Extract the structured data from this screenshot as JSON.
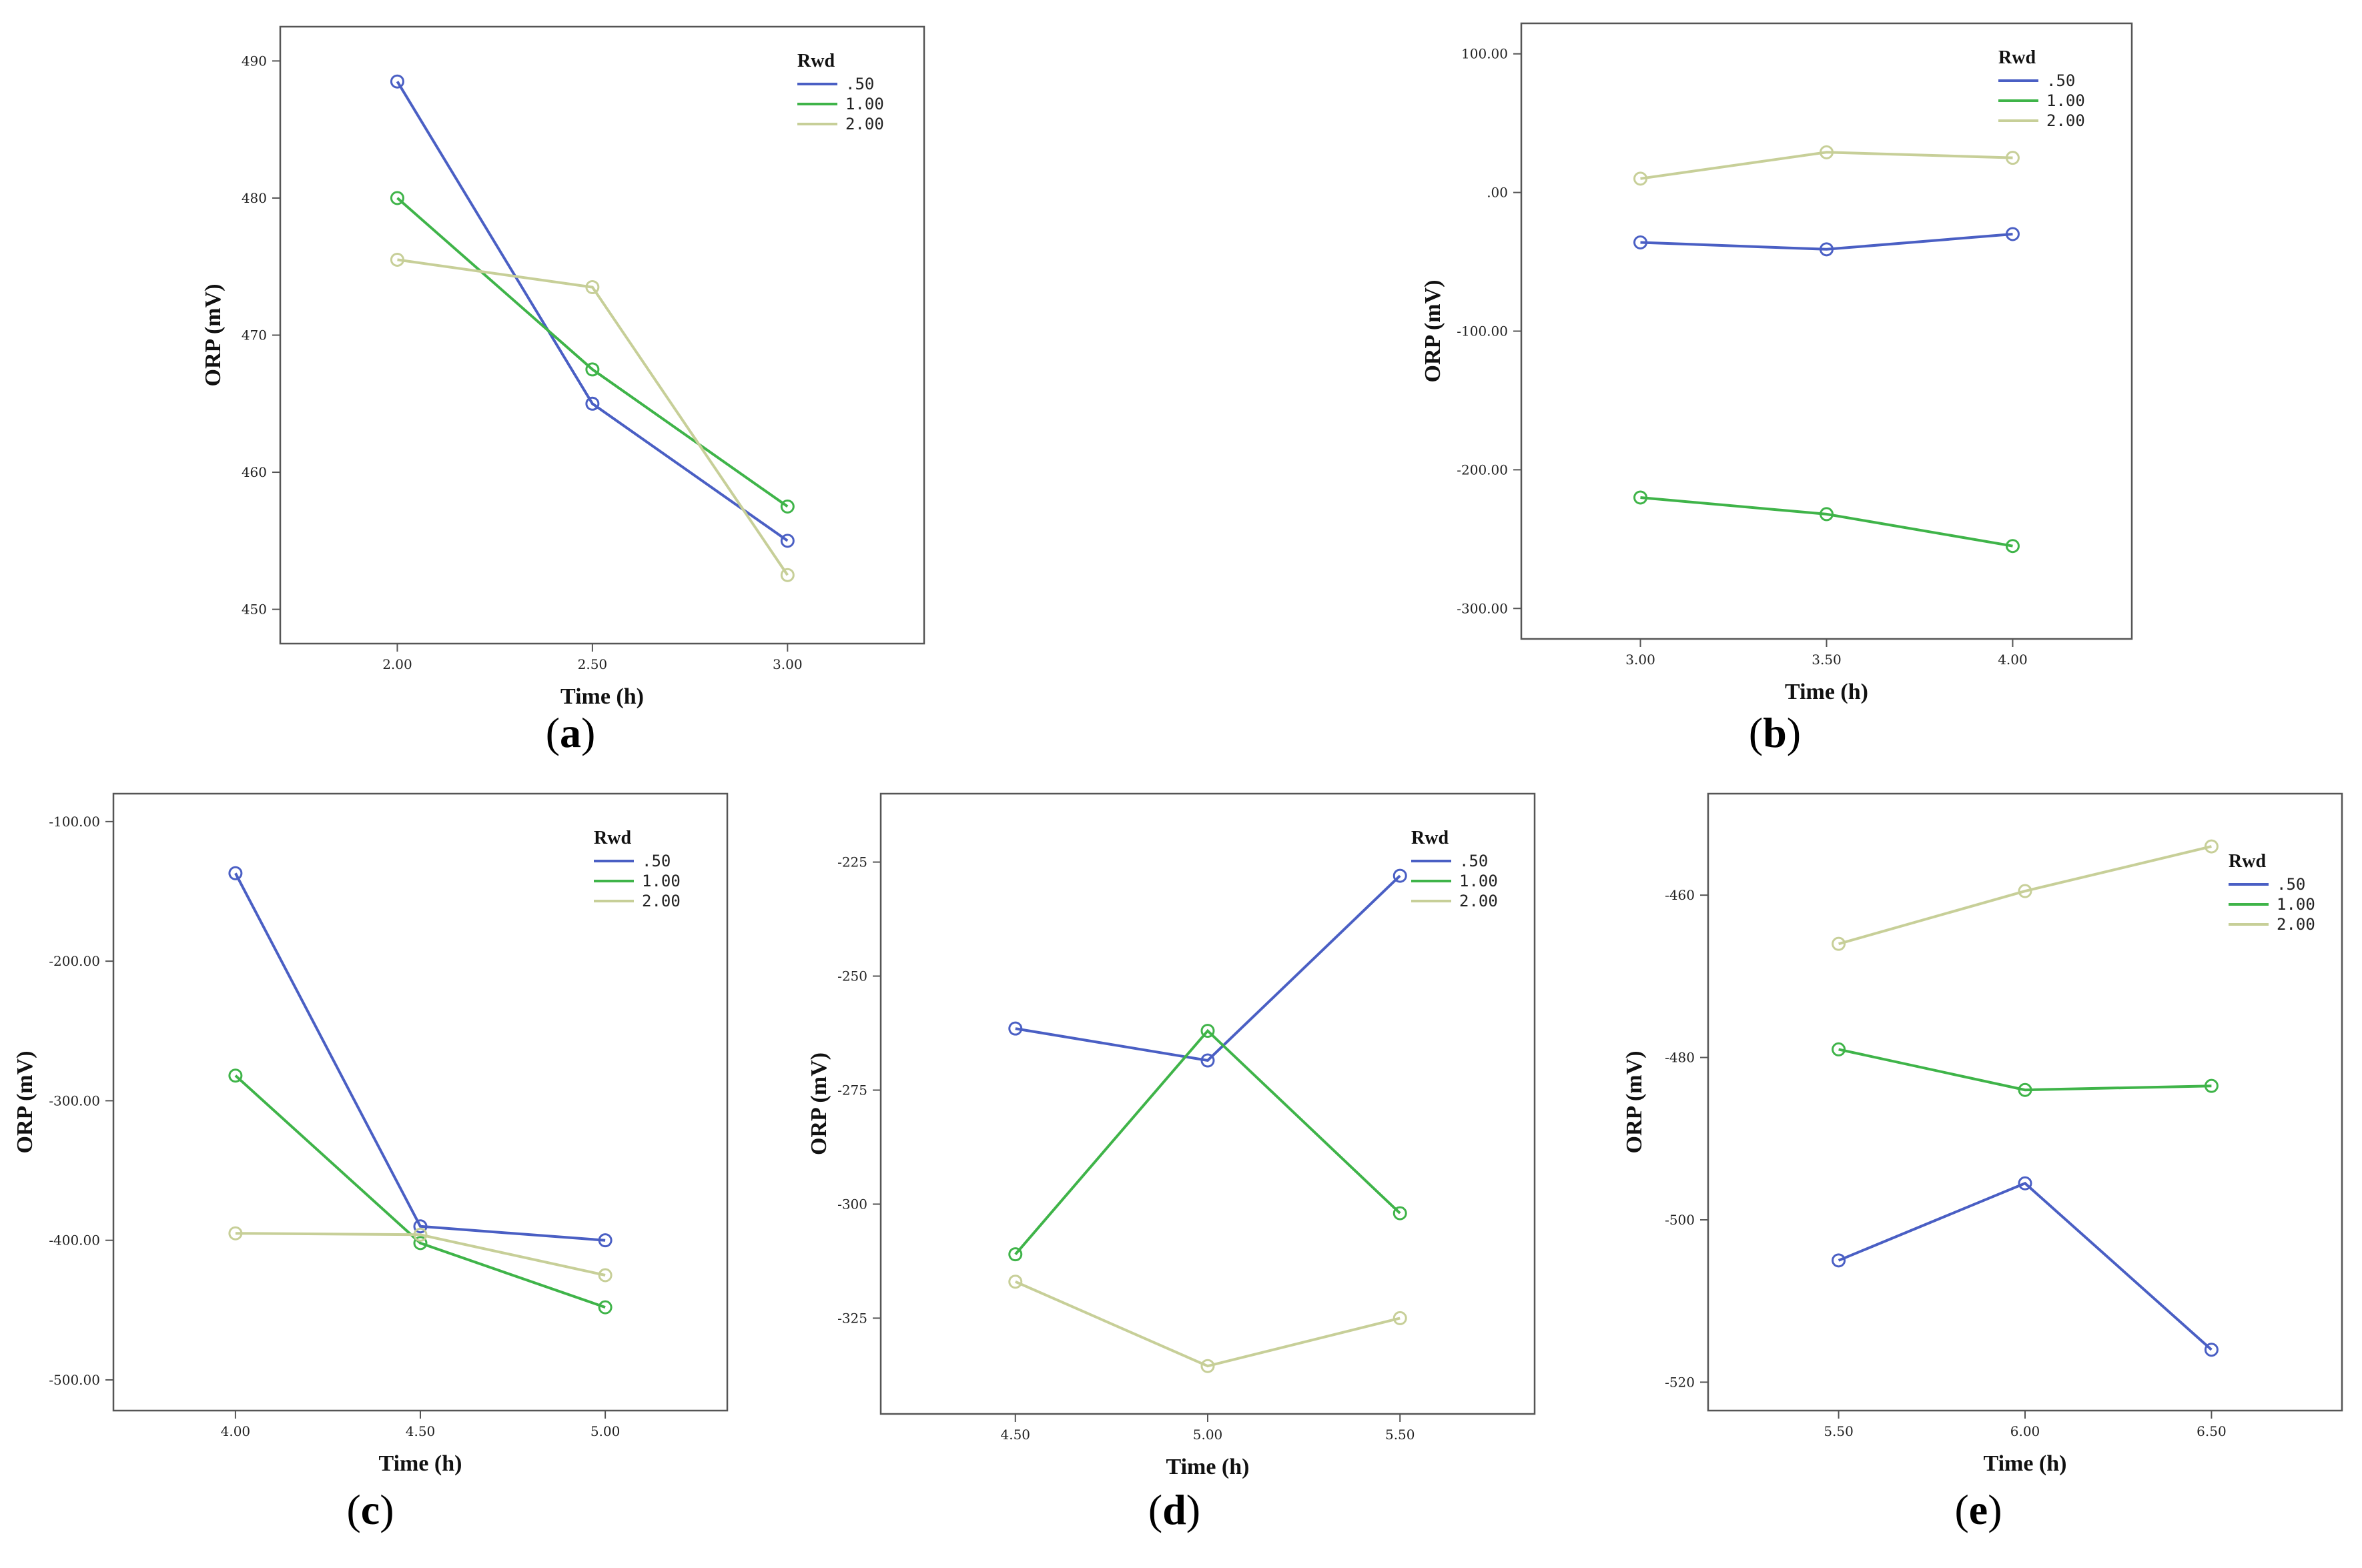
{
  "figure": {
    "colors": {
      "s050": "#4a5fc4",
      "s100": "#3fb449",
      "s200": "#c7cf98"
    },
    "legend": {
      "title": "Rwd",
      "entries": [
        ".50",
        "1.00",
        "2.00"
      ]
    }
  },
  "chart_data": [
    {
      "id": "a",
      "panel_label": "a",
      "type": "line",
      "xlabel": "Time (h)",
      "ylabel": "ORP (mV)",
      "x": [
        2.0,
        2.5,
        3.0
      ],
      "xlim": [
        1.7,
        3.35
      ],
      "xticks": [
        "2.00",
        "2.50",
        "3.00"
      ],
      "ylim": [
        447.5,
        492.5
      ],
      "yticks": [
        450,
        460,
        470,
        480,
        490
      ],
      "ytick_labels": [
        "450",
        "460",
        "470",
        "480",
        "490"
      ],
      "legend_position": "top-right",
      "series": [
        {
          "name": ".50",
          "values": [
            488.5,
            465.0,
            455.0
          ]
        },
        {
          "name": "1.00",
          "values": [
            480.0,
            467.5,
            457.5
          ]
        },
        {
          "name": "2.00",
          "values": [
            475.5,
            473.5,
            452.5
          ]
        }
      ]
    },
    {
      "id": "b",
      "panel_label": "b",
      "type": "line",
      "xlabel": "Time (h)",
      "ylabel": "ORP (mV)",
      "x": [
        3.0,
        3.5,
        4.0
      ],
      "xlim": [
        2.68,
        4.32
      ],
      "xticks": [
        "3.00",
        "3.50",
        "4.00"
      ],
      "ylim": [
        -322,
        122
      ],
      "yticks": [
        -300,
        -200,
        -100,
        0,
        100
      ],
      "ytick_labels": [
        "-300.00",
        "-200.00",
        "-100.00",
        ".00",
        "100.00"
      ],
      "legend_position": "top-right",
      "series": [
        {
          "name": ".50",
          "values": [
            -36,
            -41,
            -30
          ]
        },
        {
          "name": "1.00",
          "values": [
            -220,
            -232,
            -255
          ]
        },
        {
          "name": "2.00",
          "values": [
            10,
            29,
            25
          ]
        }
      ]
    },
    {
      "id": "c",
      "panel_label": "c",
      "type": "line",
      "xlabel": "Time (h)",
      "ylabel": "ORP (mV)",
      "x": [
        4.0,
        4.5,
        5.0
      ],
      "xlim": [
        3.67,
        5.33
      ],
      "xticks": [
        "4.00",
        "4.50",
        "5.00"
      ],
      "ylim": [
        -522,
        -80
      ],
      "yticks": [
        -500,
        -400,
        -300,
        -200,
        -100
      ],
      "ytick_labels": [
        "-500.00",
        "-400.00",
        "-300.00",
        "-200.00",
        "-100.00"
      ],
      "legend_position": "top-right",
      "series": [
        {
          "name": ".50",
          "values": [
            -137,
            -390,
            -400
          ]
        },
        {
          "name": "1.00",
          "values": [
            -282,
            -402,
            -448
          ]
        },
        {
          "name": "2.00",
          "values": [
            -395,
            -396,
            -425
          ]
        }
      ]
    },
    {
      "id": "d",
      "panel_label": "d",
      "type": "line",
      "xlabel": "Time (h)",
      "ylabel": "ORP (mV)",
      "x": [
        4.5,
        5.0,
        5.5
      ],
      "xlim": [
        4.15,
        5.85
      ],
      "xticks": [
        "4.50",
        "5.00",
        "5.50"
      ],
      "ylim": [
        -346,
        -210
      ],
      "yticks": [
        -325,
        -300,
        -275,
        -250,
        -225
      ],
      "ytick_labels": [
        "-325",
        "-300",
        "-275",
        "-250",
        "-225"
      ],
      "legend_position": "top-right",
      "series": [
        {
          "name": ".50",
          "values": [
            -261.5,
            -268.5,
            -228
          ]
        },
        {
          "name": "1.00",
          "values": [
            -311,
            -262,
            -302
          ]
        },
        {
          "name": "2.00",
          "values": [
            -317,
            -335.5,
            -325
          ]
        }
      ]
    },
    {
      "id": "e",
      "panel_label": "e",
      "type": "line",
      "xlabel": "Time (h)",
      "ylabel": "ORP (mV)",
      "x": [
        5.5,
        6.0,
        6.5
      ],
      "xlim": [
        5.15,
        6.85
      ],
      "xticks": [
        "5.50",
        "6.00",
        "6.50"
      ],
      "ylim": [
        -523.5,
        -447.5
      ],
      "yticks": [
        -520,
        -500,
        -480,
        -460
      ],
      "ytick_labels": [
        "-520",
        "-500",
        "-480",
        "-460"
      ],
      "legend_position": "top-right",
      "series": [
        {
          "name": ".50",
          "values": [
            -505,
            -495.5,
            -516
          ]
        },
        {
          "name": "1.00",
          "values": [
            -479,
            -484,
            -483.5
          ]
        },
        {
          "name": "2.00",
          "values": [
            -466,
            -459.5,
            -454
          ]
        }
      ]
    }
  ]
}
